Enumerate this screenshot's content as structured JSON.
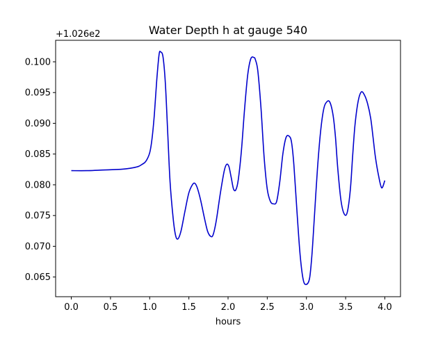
{
  "chart_data": {
    "type": "line",
    "title": "Water Depth h at gauge 540",
    "xlabel": "hours",
    "ylabel": "",
    "offset_text": "+1.026e2",
    "xlim": [
      -0.2,
      4.2
    ],
    "ylim": [
      0.0618,
      0.1035
    ],
    "x_ticks": [
      0.0,
      0.5,
      1.0,
      1.5,
      2.0,
      2.5,
      3.0,
      3.5,
      4.0
    ],
    "x_tick_labels": [
      "0.0",
      "0.5",
      "1.0",
      "1.5",
      "2.0",
      "2.5",
      "3.0",
      "3.5",
      "4.0"
    ],
    "y_ticks": [
      0.065,
      0.07,
      0.075,
      0.08,
      0.085,
      0.09,
      0.095,
      0.1
    ],
    "y_tick_labels": [
      "0.065",
      "0.070",
      "0.075",
      "0.080",
      "0.085",
      "0.090",
      "0.095",
      "0.100"
    ],
    "grid": false,
    "series": [
      {
        "name": "",
        "color": "#0000cc",
        "x": [
          0.0,
          0.2,
          0.4,
          0.6,
          0.7,
          0.8,
          0.86,
          0.9,
          0.95,
          1.0,
          1.03,
          1.06,
          1.09,
          1.12,
          1.14,
          1.17,
          1.2,
          1.23,
          1.26,
          1.3,
          1.33,
          1.36,
          1.4,
          1.45,
          1.5,
          1.55,
          1.58,
          1.61,
          1.65,
          1.7,
          1.74,
          1.78,
          1.81,
          1.85,
          1.9,
          1.95,
          1.98,
          2.01,
          2.04,
          2.07,
          2.1,
          2.13,
          2.17,
          2.21,
          2.25,
          2.29,
          2.33,
          2.35,
          2.38,
          2.42,
          2.46,
          2.5,
          2.54,
          2.58,
          2.62,
          2.66,
          2.7,
          2.74,
          2.78,
          2.81,
          2.84,
          2.88,
          2.92,
          2.96,
          3.0,
          3.04,
          3.07,
          3.1,
          3.14,
          3.18,
          3.22,
          3.26,
          3.3,
          3.34,
          3.37,
          3.4,
          3.44,
          3.48,
          3.52,
          3.56,
          3.59,
          3.62,
          3.66,
          3.7,
          3.74,
          3.78,
          3.82,
          3.85,
          3.88,
          3.92,
          3.96,
          4.0
        ],
        "y": [
          0.0823,
          0.0823,
          0.0824,
          0.0825,
          0.0826,
          0.0828,
          0.083,
          0.0833,
          0.0838,
          0.0852,
          0.0875,
          0.0915,
          0.097,
          0.1012,
          0.1016,
          0.1008,
          0.0965,
          0.0885,
          0.0805,
          0.0745,
          0.0718,
          0.0712,
          0.0725,
          0.0757,
          0.0787,
          0.0801,
          0.0802,
          0.0794,
          0.0775,
          0.0745,
          0.0724,
          0.0716,
          0.0719,
          0.0742,
          0.0785,
          0.0822,
          0.0833,
          0.083,
          0.0812,
          0.0793,
          0.0792,
          0.0808,
          0.0855,
          0.0922,
          0.0978,
          0.1005,
          0.1007,
          0.1003,
          0.0985,
          0.0925,
          0.0845,
          0.0793,
          0.0773,
          0.0769,
          0.0773,
          0.0805,
          0.0851,
          0.0877,
          0.0879,
          0.0869,
          0.0832,
          0.0755,
          0.0685,
          0.0645,
          0.0638,
          0.0648,
          0.0686,
          0.0745,
          0.0825,
          0.0886,
          0.0923,
          0.0935,
          0.0934,
          0.0913,
          0.0878,
          0.0826,
          0.0775,
          0.0753,
          0.0755,
          0.0792,
          0.0848,
          0.0898,
          0.0936,
          0.0951,
          0.0946,
          0.0932,
          0.0908,
          0.0877,
          0.0845,
          0.0815,
          0.0795,
          0.0807
        ]
      }
    ]
  }
}
